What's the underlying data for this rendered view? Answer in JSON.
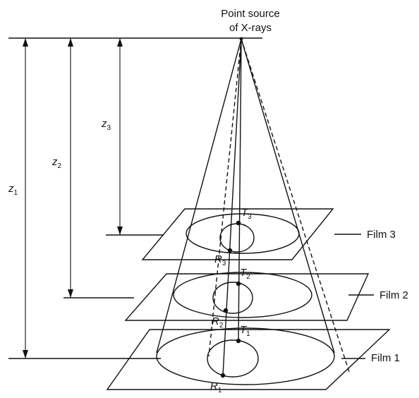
{
  "source": {
    "line1": "Point source",
    "line2": "of X-rays"
  },
  "dimensions": {
    "z1": {
      "main": "z",
      "sub": "1"
    },
    "z2": {
      "main": "z",
      "sub": "2"
    },
    "z3": {
      "main": "z",
      "sub": "3"
    }
  },
  "films": [
    {
      "label": "Film 3"
    },
    {
      "label": "Film 2"
    },
    {
      "label": "Film 1"
    }
  ],
  "points": {
    "T3": {
      "main": "T",
      "sub": "3"
    },
    "R3": {
      "main": "R",
      "sub": "3"
    },
    "T2": {
      "main": "T",
      "sub": "2"
    },
    "R2": {
      "main": "R",
      "sub": "2"
    },
    "T1": {
      "main": "T",
      "sub": "1"
    },
    "R1": {
      "main": "R",
      "sub": "1"
    }
  }
}
